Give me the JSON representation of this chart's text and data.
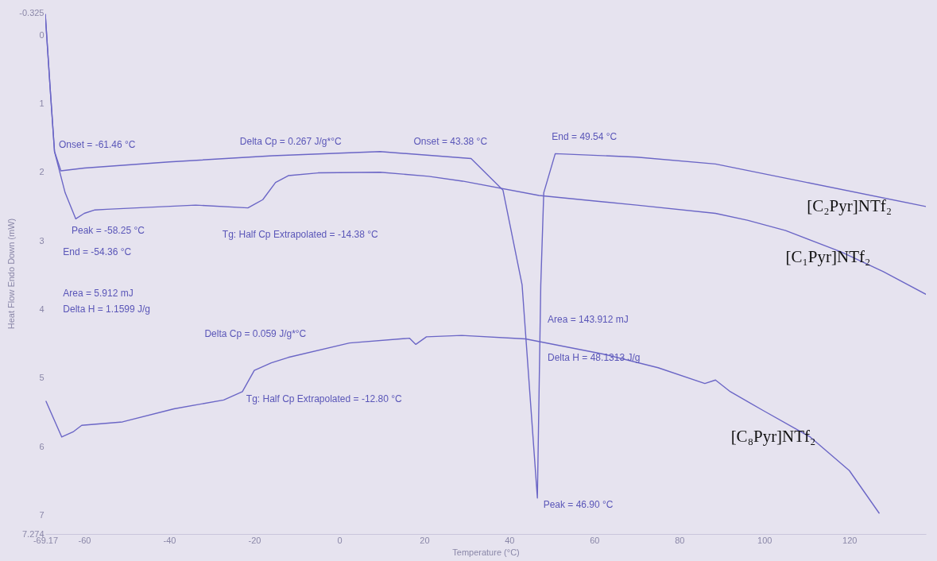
{
  "chart_data": {
    "type": "line",
    "xlabel": "Temperature (°C)",
    "ylabel": "Heat Flow Endo Down (mW)",
    "xlim": [
      -69.17,
      138
    ],
    "xticks": [
      -69.17,
      -60,
      -40,
      -20,
      0,
      20,
      40,
      60,
      80,
      100,
      120
    ],
    "ylim": [
      7.274,
      -0.325
    ],
    "yticks": [
      -0.325,
      0,
      1,
      2,
      3,
      4,
      5,
      6,
      7,
      7.274
    ],
    "grid": false,
    "marker": "none",
    "line_style": "solid",
    "series": [
      {
        "name": "[C₂Pyr]NTf₂",
        "color": "#6b66c6",
        "x": [
          -69.17,
          -68,
          -67,
          -65.5,
          -60,
          -40,
          -15.7,
          9.6,
          31,
          38.5,
          43,
          46.6,
          47.4,
          48.1,
          50.8,
          70,
          88.5,
          110,
          138
        ],
        "values": [
          -0.3,
          0.8,
          1.7,
          1.98,
          1.94,
          1.85,
          1.76,
          1.7,
          1.8,
          2.26,
          3.64,
          6.75,
          3.64,
          2.3,
          1.73,
          1.78,
          1.88,
          2.15,
          2.5
        ]
      },
      {
        "name": "[C₁Pyr]NTf₂",
        "color": "#6b66c6",
        "x": [
          -69.17,
          -68,
          -67,
          -64.5,
          -62,
          -60,
          -57.5,
          -54.7,
          -33.8,
          -21.5,
          -18,
          -15,
          -12,
          -5,
          9.6,
          21,
          29,
          47,
          70,
          88.5,
          96,
          105,
          118,
          128,
          138
        ],
        "values": [
          -0.3,
          0.8,
          1.7,
          2.3,
          2.68,
          2.6,
          2.55,
          2.54,
          2.48,
          2.52,
          2.4,
          2.15,
          2.05,
          2.01,
          2.0,
          2.06,
          2.13,
          2.34,
          2.48,
          2.6,
          2.7,
          2.85,
          3.16,
          3.45,
          3.78
        ]
      },
      {
        "name": "[C₈Pyr]NTf₂",
        "color": "#6b66c6",
        "x": [
          -69,
          -65.3,
          -62.5,
          -60.6,
          -51,
          -38.9,
          -27.2,
          -22.8,
          -20,
          -16,
          -12,
          2.4,
          16.5,
          18,
          20.5,
          28.8,
          43.8,
          62,
          75,
          86,
          88.5,
          92,
          99.6,
          110.8,
          120,
          127
        ],
        "values": [
          5.34,
          5.86,
          5.78,
          5.69,
          5.64,
          5.45,
          5.32,
          5.2,
          4.89,
          4.78,
          4.7,
          4.49,
          4.42,
          4.51,
          4.4,
          4.38,
          4.43,
          4.65,
          4.85,
          5.08,
          5.03,
          5.2,
          5.47,
          5.86,
          6.35,
          6.97
        ]
      }
    ],
    "annotations": [
      "Onset = -61.46 °C",
      "Peak = -58.25 °C",
      "End = -54.36 °C",
      "Area = 5.912 mJ",
      "Delta H = 1.1599 J/g",
      "Delta Cp = 0.267 J/g*°C",
      "Tg: Half Cp Extrapolated = -14.38 °C",
      "Onset = 43.38 °C",
      "End = 49.54 °C",
      "Delta Cp = 0.059 J/g*°C",
      "Tg: Half Cp Extrapolated = -12.80 °C",
      "Area = 143.912 mJ",
      "Delta H = 48.1313 J/g",
      "Peak = 46.90 °C"
    ]
  }
}
